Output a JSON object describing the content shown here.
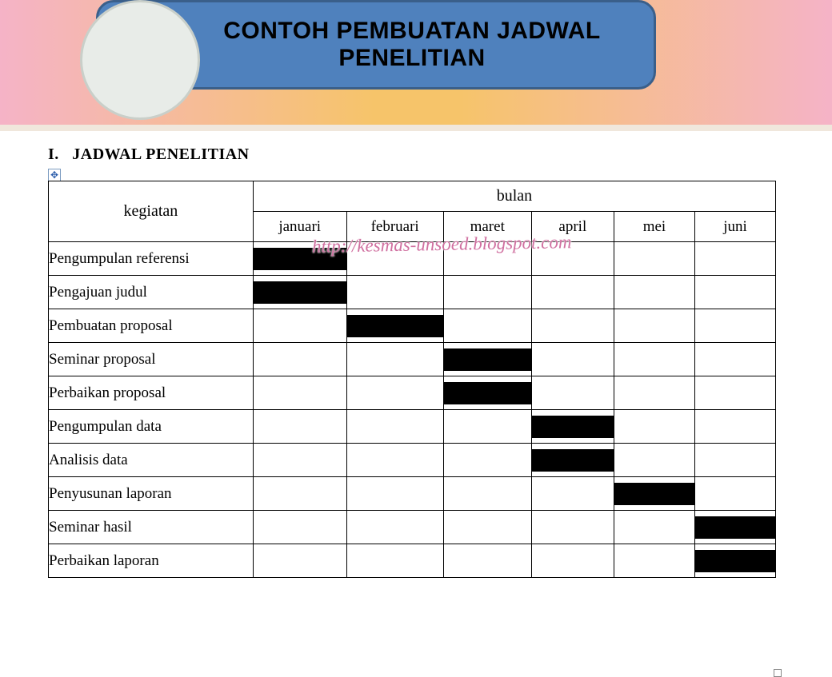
{
  "header": {
    "title_line1": "CONTOH PEMBUATAN JADWAL",
    "title_line2": "PENELITIAN"
  },
  "section": {
    "numeral": "I.",
    "title": "JADWAL PENELITIAN"
  },
  "table": {
    "col_activity_header": "kegiatan",
    "col_months_group": "bulan",
    "months": [
      "januari",
      "februari",
      "maret",
      "april",
      "mei",
      "juni"
    ],
    "rows": [
      {
        "label": "Pengumpulan referensi",
        "months_filled": [
          0
        ]
      },
      {
        "label": "Pengajuan judul",
        "months_filled": [
          0
        ]
      },
      {
        "label": "Pembuatan proposal",
        "months_filled": [
          1
        ]
      },
      {
        "label": "Seminar proposal",
        "months_filled": [
          2
        ]
      },
      {
        "label": "Perbaikan proposal",
        "months_filled": [
          2
        ]
      },
      {
        "label": "Pengumpulan data",
        "months_filled": [
          3
        ]
      },
      {
        "label": "Analisis data",
        "months_filled": [
          3
        ]
      },
      {
        "label": "Penyusunan laporan",
        "months_filled": [
          4
        ]
      },
      {
        "label": "Seminar hasil",
        "months_filled": [
          5
        ]
      },
      {
        "label": "Perbaikan laporan",
        "months_filled": [
          5
        ]
      }
    ],
    "filled_color": "#000000",
    "border_color": "#000000",
    "month_col_widths": [
      104,
      108,
      98,
      92,
      90,
      90
    ]
  },
  "watermark": "http://kesmas-unsoed.blogspot.com",
  "colors": {
    "header_fill": "#4f81bd",
    "header_border": "#3a5f8a",
    "circle_fill": "#e8ece8",
    "circle_border": "#c9cfc9",
    "gradient_left": "#f5b3c7",
    "gradient_mid": "#f6c46a"
  }
}
